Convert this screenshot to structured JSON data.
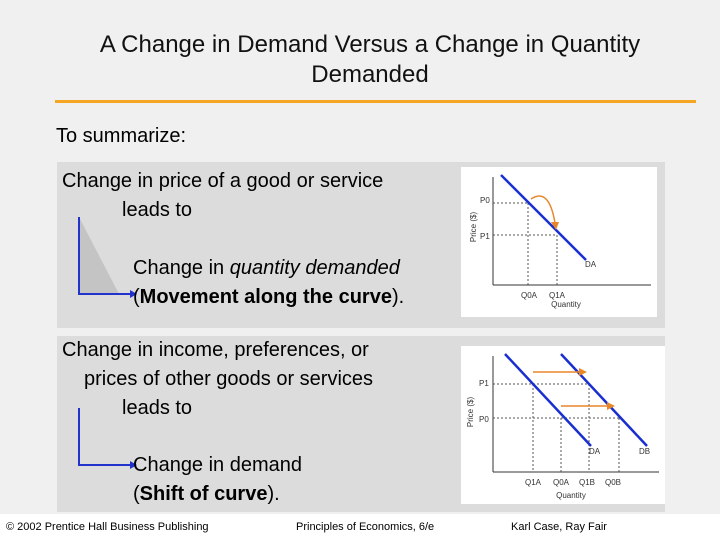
{
  "title_line1": "A Change in Demand Versus a Change in Quantity",
  "title_line2": "Demanded",
  "summary": "To summarize:",
  "panel1": {
    "line1": "Change in price of a good or service",
    "line2": "leads to",
    "result_pre": "Change in ",
    "result_em": "quantity demanded",
    "result_open": "(",
    "result_bold": "Movement along the curve",
    "result_close": ")."
  },
  "panel2": {
    "line1": "Change in income, preferences, or",
    "line2": "prices of other goods or services",
    "line3": "leads to",
    "result_line1": "Change in demand",
    "result_open": "(",
    "result_bold": "Shift of curve",
    "result_close": ")."
  },
  "graph1": {
    "ylabel": "Price ($)",
    "xlabel": "Quantity",
    "p0": "P0",
    "p1": "P1",
    "q0": "Q0A",
    "q1": "Q1A",
    "curve": "DA"
  },
  "graph2": {
    "ylabel": "Price ($)",
    "xlabel": "Quantity",
    "p0": "P0",
    "p1": "P1",
    "q0a": "Q0A",
    "q1a": "Q1A",
    "q0b": "Q0B",
    "q1b": "Q1B",
    "curve_a": "DA",
    "curve_b": "DB"
  },
  "footer": {
    "left": "© 2002 Prentice Hall Business Publishing",
    "center": "Principles of Economics, 6/e",
    "right": "Karl Case, Ray Fair"
  },
  "colors": {
    "accent": "#f5a623",
    "curve": "#1a2fd0",
    "arrow": "#2233cc",
    "panel": "#dcdcdc"
  }
}
